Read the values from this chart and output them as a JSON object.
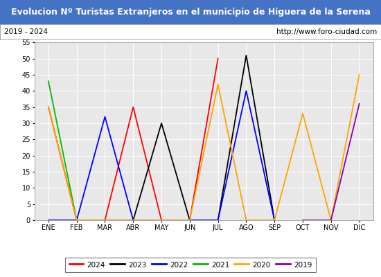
{
  "title": "Evolucion Nº Turistas Extranjeros en el municipio de Higuera de la Serena",
  "subtitle_left": "2019 - 2024",
  "subtitle_right": "http://www.foro-ciudad.com",
  "title_bg_color": "#4472C4",
  "title_font_color": "#FFFFFF",
  "subtitle_bg_color": "#FFFFFF",
  "subtitle_font_color": "#000000",
  "plot_bg_color": "#E8E8E8",
  "grid_color": "#FFFFFF",
  "months": [
    "ENE",
    "FEB",
    "MAR",
    "ABR",
    "MAY",
    "JUN",
    "JUL",
    "AGO",
    "SEP",
    "OCT",
    "NOV",
    "DIC"
  ],
  "ylim": [
    0,
    55
  ],
  "yticks": [
    0,
    5,
    10,
    15,
    20,
    25,
    30,
    35,
    40,
    45,
    50,
    55
  ],
  "series": {
    "2024": {
      "color": "#FF0000",
      "data": [
        35,
        0,
        0,
        35,
        0,
        0,
        50,
        null,
        null,
        null,
        null,
        null
      ]
    },
    "2023": {
      "color": "#000000",
      "data": [
        0,
        0,
        0,
        0,
        30,
        0,
        0,
        51,
        0,
        null,
        null,
        null
      ]
    },
    "2022": {
      "color": "#0000FF",
      "data": [
        0,
        0,
        32,
        0,
        0,
        0,
        0,
        40,
        0,
        null,
        null,
        null
      ]
    },
    "2021": {
      "color": "#00BB00",
      "data": [
        43,
        0,
        null,
        null,
        null,
        null,
        null,
        null,
        null,
        null,
        null,
        null
      ]
    },
    "2020": {
      "color": "#FFA500",
      "data": [
        35,
        0,
        0,
        0,
        0,
        0,
        42,
        0,
        0,
        33,
        0,
        45
      ]
    },
    "2019": {
      "color": "#8800AA",
      "data": [
        null,
        null,
        null,
        null,
        null,
        null,
        null,
        null,
        null,
        0,
        0,
        36
      ]
    }
  },
  "legend_order": [
    "2024",
    "2023",
    "2022",
    "2021",
    "2020",
    "2019"
  ]
}
